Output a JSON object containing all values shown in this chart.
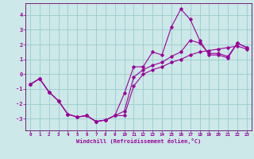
{
  "xlabel": "Windchill (Refroidissement éolien,°C)",
  "bg_color": "#cce8e8",
  "grid_color": "#99cccc",
  "line_color": "#990099",
  "spine_color": "#660066",
  "xlim": [
    -0.5,
    23.5
  ],
  "ylim": [
    -3.8,
    4.8
  ],
  "yticks": [
    -3,
    -2,
    -1,
    0,
    1,
    2,
    3,
    4
  ],
  "xticks": [
    0,
    1,
    2,
    3,
    4,
    5,
    6,
    7,
    8,
    9,
    10,
    11,
    12,
    13,
    14,
    15,
    16,
    17,
    18,
    19,
    20,
    21,
    22,
    23
  ],
  "series": [
    {
      "x": [
        0,
        1,
        2,
        3,
        4,
        5,
        6,
        7,
        8,
        9,
        10,
        11,
        12,
        13,
        14,
        15,
        16,
        17,
        18,
        19,
        20,
        21,
        22,
        23
      ],
      "y": [
        -0.7,
        -0.3,
        -1.2,
        -1.8,
        -2.7,
        -2.9,
        -2.8,
        -3.2,
        -3.1,
        -2.8,
        -1.3,
        0.5,
        0.5,
        1.5,
        1.3,
        3.2,
        4.4,
        3.7,
        2.3,
        1.3,
        1.3,
        1.1,
        2.1,
        1.8
      ]
    },
    {
      "x": [
        0,
        1,
        2,
        3,
        4,
        5,
        6,
        7,
        8,
        9,
        10,
        11,
        12,
        13,
        14,
        15,
        16,
        17,
        18,
        19,
        20,
        21,
        22,
        23
      ],
      "y": [
        -0.7,
        -0.3,
        -1.2,
        -1.8,
        -2.7,
        -2.9,
        -2.8,
        -3.2,
        -3.1,
        -2.8,
        -2.5,
        -0.2,
        0.3,
        0.6,
        0.8,
        1.2,
        1.5,
        2.3,
        2.1,
        1.4,
        1.4,
        1.2,
        2.1,
        1.8
      ]
    },
    {
      "x": [
        0,
        1,
        2,
        3,
        4,
        5,
        6,
        7,
        8,
        9,
        10,
        11,
        12,
        13,
        14,
        15,
        16,
        17,
        18,
        19,
        20,
        21,
        22,
        23
      ],
      "y": [
        -0.7,
        -0.3,
        -1.2,
        -1.8,
        -2.7,
        -2.9,
        -2.8,
        -3.2,
        -3.1,
        -2.8,
        -2.8,
        -0.8,
        0.0,
        0.3,
        0.5,
        0.8,
        1.0,
        1.3,
        1.5,
        1.6,
        1.7,
        1.8,
        1.9,
        1.7
      ]
    }
  ]
}
